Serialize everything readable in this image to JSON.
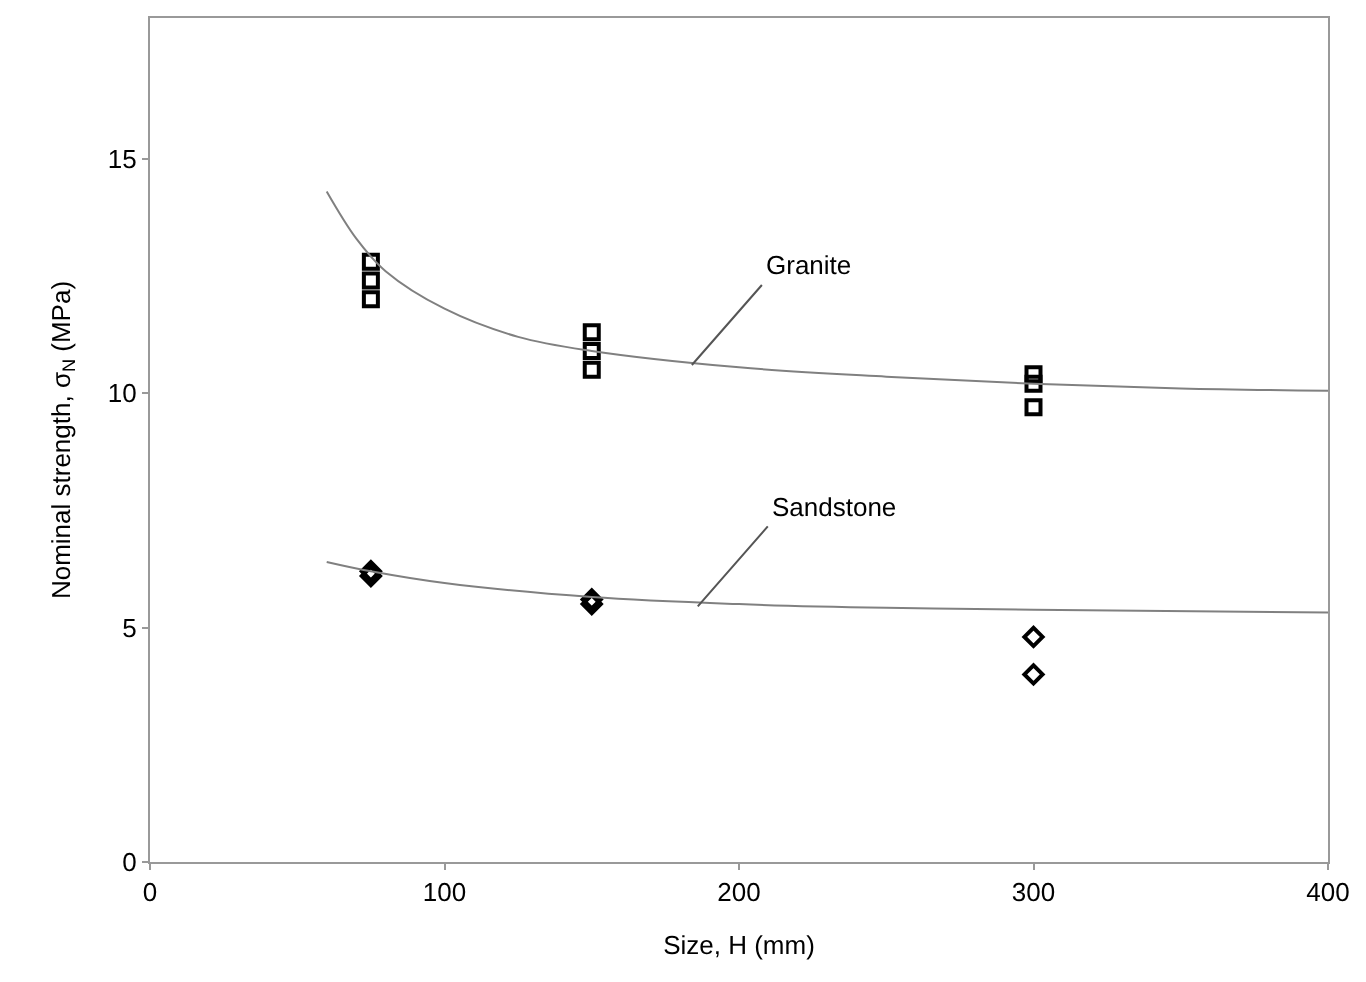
{
  "chart_data": {
    "type": "scatter",
    "xlabel": "Size, H (mm)",
    "ylabel": "Nominal strength, σ$_{N}$ (MPa)",
    "xlim": [
      0,
      400
    ],
    "xticks": [
      0,
      100,
      200,
      300,
      400
    ],
    "ylim": [
      0,
      18
    ],
    "yticks": [
      0,
      5,
      10,
      15
    ],
    "series": [
      {
        "marker": "square",
        "color": "#000000",
        "x": [
          75,
          75,
          75,
          150,
          150,
          150,
          300,
          300,
          300
        ],
        "values": [
          12.8,
          12.4,
          12.0,
          11.3,
          10.9,
          10.5,
          10.4,
          10.2,
          9.7
        ]
      },
      {
        "marker": "diamond",
        "color": "#000000",
        "x": [
          75,
          75,
          150,
          150,
          300,
          300
        ],
        "values": [
          6.2,
          6.1,
          5.6,
          5.5,
          4.8,
          4.0
        ]
      },
      {
        "type": "line",
        "marker": "none",
        "line_style": "solid",
        "color": "#808080",
        "x": [
          60,
          70,
          80,
          100,
          125,
          150,
          200,
          250,
          300,
          350,
          400
        ],
        "values": [
          14.3,
          13.3,
          12.6,
          11.8,
          11.2,
          10.9,
          10.55,
          10.35,
          10.2,
          10.1,
          10.05
        ]
      },
      {
        "type": "line",
        "marker": "none",
        "line_style": "solid",
        "color": "#808080",
        "x": [
          60,
          75,
          100,
          150,
          200,
          250,
          300,
          400
        ],
        "values": [
          6.4,
          6.2,
          5.95,
          5.65,
          5.5,
          5.42,
          5.38,
          5.32
        ]
      }
    ],
    "annotations": [
      {
        "text": "Granite",
        "x": 184,
        "y": 10.6
      },
      {
        "text": "Sandstone",
        "x": 186,
        "y": 5.45
      }
    ]
  }
}
